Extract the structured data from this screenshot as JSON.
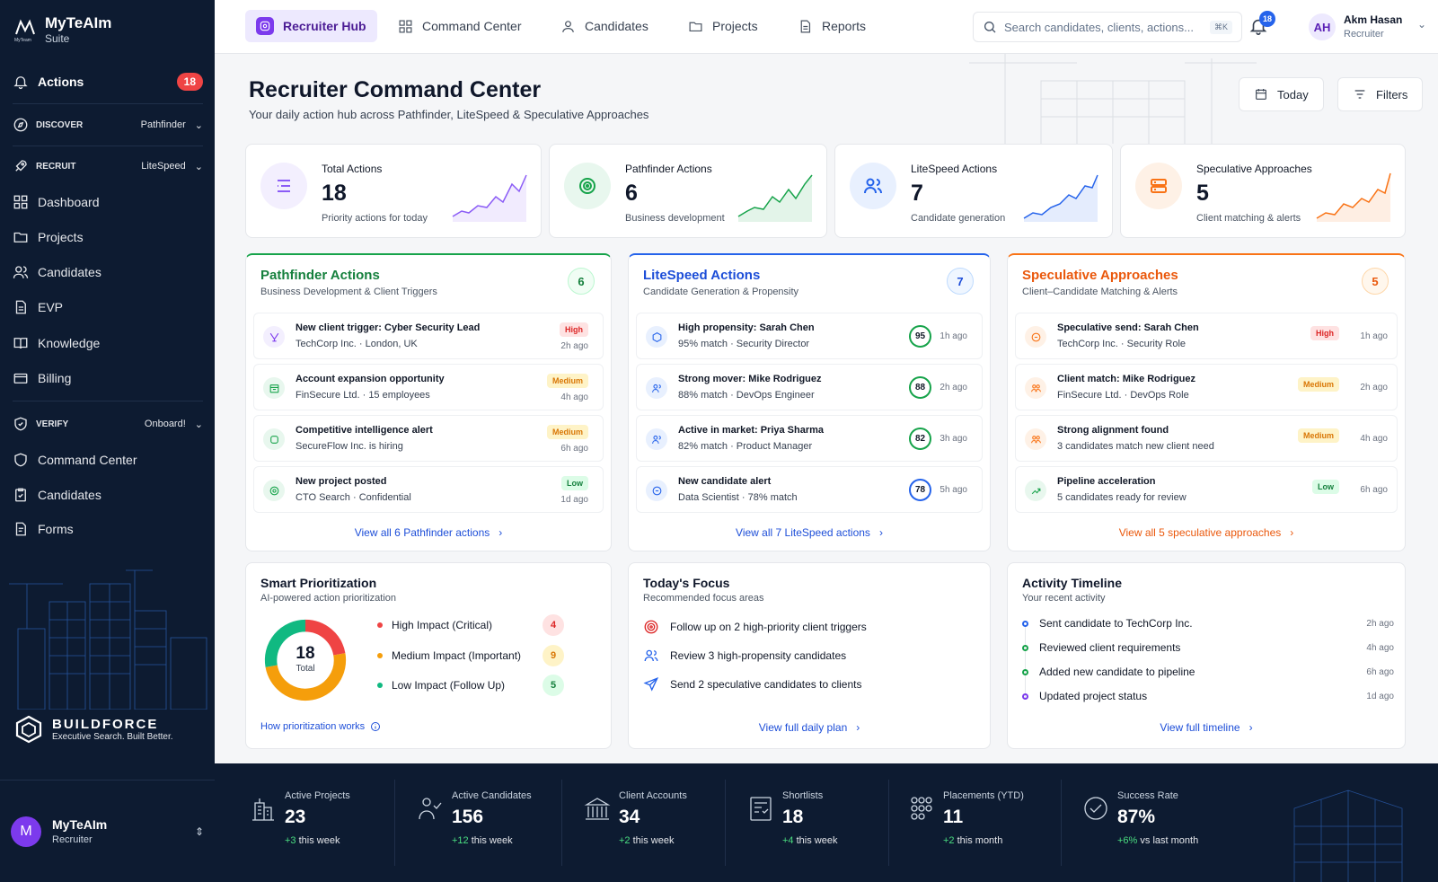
{
  "brand": {
    "name": "MyTeAIm",
    "sub": "Suite",
    "logo_text": "MyTeam"
  },
  "sidebar": {
    "actions": {
      "label": "Actions",
      "count": "18"
    },
    "discover": {
      "label": "DISCOVER",
      "selected": "Pathfinder"
    },
    "recruit": {
      "label": "RECRUIT",
      "selected": "LiteSpeed"
    },
    "recruit_items": [
      "Dashboard",
      "Projects",
      "Candidates",
      "EVP",
      "Knowledge",
      "Billing"
    ],
    "verify": {
      "label": "VERIFY",
      "selected": "Onboard!"
    },
    "verify_items": [
      "Command Center",
      "Candidates",
      "Forms"
    ]
  },
  "buildforce": {
    "name": "BUILDFORCE",
    "tagline": "Executive Search. Built Better."
  },
  "user_card": {
    "initial": "M",
    "name": "MyTeAIm",
    "role": "Recruiter"
  },
  "topbar": {
    "tabs": [
      "Recruiter Hub",
      "Command Center",
      "Candidates",
      "Projects",
      "Reports"
    ],
    "search_placeholder": "Search candidates, clients, actions...",
    "shortcut": "⌘K",
    "notifications": "18",
    "user": {
      "initials": "AH",
      "name": "Akm Hasan",
      "role": "Recruiter"
    }
  },
  "page": {
    "title": "Recruiter Command Center",
    "subtitle": "Your daily action hub across Pathfinder, LiteSpeed & Speculative Approaches",
    "today": "Today",
    "filters": "Filters"
  },
  "stats": [
    {
      "label": "Total Actions",
      "value": "18",
      "sub": "Priority actions for today",
      "color": "#8b5cf6"
    },
    {
      "label": "Pathfinder Actions",
      "value": "6",
      "sub": "Business development",
      "color": "#16a34a"
    },
    {
      "label": "LiteSpeed Actions",
      "value": "7",
      "sub": "Candidate generation",
      "color": "#2563eb"
    },
    {
      "label": "Speculative Approaches",
      "value": "5",
      "sub": "Client matching & alerts",
      "color": "#f97316"
    }
  ],
  "pathfinder": {
    "title": "Pathfinder Actions",
    "subtitle": "Business Development & Client Triggers",
    "count": "6",
    "items": [
      {
        "title": "New client trigger: Cyber Security Lead",
        "sub": "TechCorp Inc. · London, UK",
        "priority": "High",
        "time": "2h ago"
      },
      {
        "title": "Account expansion opportunity",
        "sub": "FinSecure Ltd. · 15 employees",
        "priority": "Medium",
        "time": "4h ago"
      },
      {
        "title": "Competitive intelligence alert",
        "sub": "SecureFlow Inc. is hiring",
        "priority": "Medium",
        "time": "6h ago"
      },
      {
        "title": "New project posted",
        "sub": "CTO Search · Confidential",
        "priority": "Low",
        "time": "1d ago"
      }
    ],
    "view_all": "View all 6 Pathfinder actions"
  },
  "litespeed": {
    "title": "LiteSpeed Actions",
    "subtitle": "Candidate Generation & Propensity",
    "count": "7",
    "items": [
      {
        "title": "High propensity: Sarah Chen",
        "sub": "95% match · Security Director",
        "score": "95",
        "time": "1h ago"
      },
      {
        "title": "Strong mover: Mike Rodriguez",
        "sub": "88% match · DevOps Engineer",
        "score": "88",
        "time": "2h ago"
      },
      {
        "title": "Active in market: Priya Sharma",
        "sub": "82% match · Product Manager",
        "score": "82",
        "time": "3h ago"
      },
      {
        "title": "New candidate alert",
        "sub": "Data Scientist · 78% match",
        "score": "78",
        "time": "5h ago"
      }
    ],
    "view_all": "View all 7 LiteSpeed actions"
  },
  "speculative": {
    "title": "Speculative Approaches",
    "subtitle": "Client–Candidate Matching & Alerts",
    "count": "5",
    "items": [
      {
        "title": "Speculative send: Sarah Chen",
        "sub": "TechCorp Inc. · Security Role",
        "priority": "High",
        "time": "1h ago"
      },
      {
        "title": "Client match: Mike Rodriguez",
        "sub": "FinSecure Ltd. · DevOps Role",
        "priority": "Medium",
        "time": "2h ago"
      },
      {
        "title": "Strong alignment found",
        "sub": "3 candidates match new client need",
        "priority": "Medium",
        "time": "4h ago"
      },
      {
        "title": "Pipeline acceleration",
        "sub": "5 candidates ready for review",
        "priority": "Low",
        "time": "6h ago"
      }
    ],
    "view_all": "View all 5 speculative approaches"
  },
  "smart": {
    "title": "Smart Prioritization",
    "subtitle": "AI-powered action prioritization",
    "total": "18",
    "total_label": "Total",
    "rows": [
      {
        "label": "High Impact (Critical)",
        "count": 4,
        "color": "#ef4444"
      },
      {
        "label": "Medium Impact (Important)",
        "count": 9,
        "color": "#f59e0b"
      },
      {
        "label": "Low Impact (Follow Up)",
        "count": 5,
        "color": "#10b981"
      }
    ],
    "link": "How prioritization works"
  },
  "focus": {
    "title": "Today's Focus",
    "subtitle": "Recommended focus areas",
    "items": [
      "Follow up on 2 high-priority client triggers",
      "Review 3 high-propensity candidates",
      "Send 2 speculative candidates to clients"
    ],
    "link": "View full daily plan"
  },
  "timeline": {
    "title": "Activity Timeline",
    "subtitle": "Your recent activity",
    "items": [
      {
        "text": "Sent candidate to TechCorp Inc.",
        "time": "2h ago",
        "color": "#2563eb"
      },
      {
        "text": "Reviewed client requirements",
        "time": "4h ago",
        "color": "#16a34a"
      },
      {
        "text": "Added new candidate to pipeline",
        "time": "6h ago",
        "color": "#16a34a"
      },
      {
        "text": "Updated project status",
        "time": "1d ago",
        "color": "#7c3aed"
      }
    ],
    "link": "View full timeline"
  },
  "kpis": [
    {
      "label": "Active Projects",
      "value": "23",
      "delta": "+3",
      "suffix": " this week"
    },
    {
      "label": "Active Candidates",
      "value": "156",
      "delta": "+12",
      "suffix": " this week"
    },
    {
      "label": "Client Accounts",
      "value": "34",
      "delta": "+2",
      "suffix": " this week"
    },
    {
      "label": "Shortlists",
      "value": "18",
      "delta": "+4",
      "suffix": " this week"
    },
    {
      "label": "Placements (YTD)",
      "value": "11",
      "delta": "+2",
      "suffix": " this month"
    },
    {
      "label": "Success Rate",
      "value": "87%",
      "delta": "+6%",
      "suffix": " vs last month"
    }
  ]
}
